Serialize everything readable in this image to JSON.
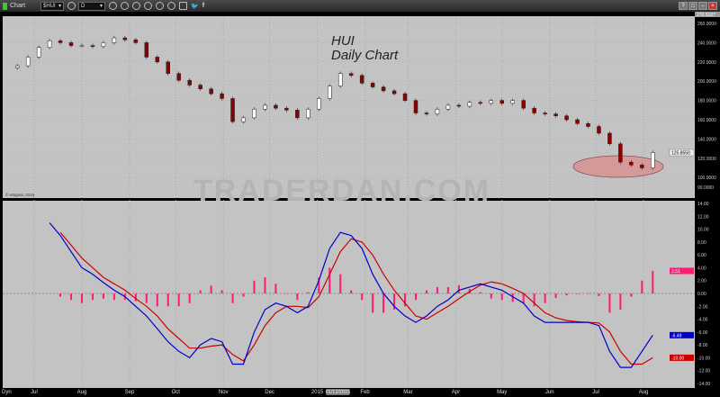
{
  "window": {
    "title": "Chart",
    "symbol": "$HUI",
    "interval": "D",
    "toolbar_icons": [
      "settings-icon",
      "settings-icon",
      "pencil-icon",
      "refresh-icon",
      "target-icon",
      "clock-icon",
      "link-icon",
      "comment-icon",
      "twitter-icon",
      "facebook-icon"
    ],
    "window_buttons": [
      "?",
      "□",
      "–",
      "×"
    ]
  },
  "annotation": {
    "line1": "HUI",
    "line2": "Daily Chart"
  },
  "watermark": "TRADERDAN.COM",
  "copyright": "© eSignal, 2015",
  "bottom_left": "Dyn",
  "colors": {
    "background": "#c3c3c3",
    "axis": "#000000",
    "up_candle": "#ffffff",
    "down_candle": "#8b0000",
    "macd": "#0000cc",
    "signal": "#cc0000",
    "histogram": "#ff1a75",
    "ellipse": "#d49a9a"
  },
  "chart_data": [
    {
      "type": "candlestick",
      "title": "HUI Daily Chart",
      "ylim": [
        90,
        270.5187
      ],
      "y_ticks": [
        "260.0000",
        "240.0000",
        "220.0000",
        "200.0000",
        "180.0000",
        "160.0000",
        "140.0000",
        "120.0000",
        "100.0000",
        "90.0000"
      ],
      "y_top_label": "270.5187",
      "last_price_label": "125.8550",
      "last_price": 125.855,
      "x": [
        "2014-06-20",
        "2014-06-27",
        "2014-07-04",
        "2014-07-11",
        "2014-07-18",
        "2014-07-25",
        "2014-08-01",
        "2014-08-08",
        "2014-08-15",
        "2014-08-22",
        "2014-08-29",
        "2014-09-05",
        "2014-09-12",
        "2014-09-19",
        "2014-09-26",
        "2014-10-03",
        "2014-10-10",
        "2014-10-17",
        "2014-10-24",
        "2014-10-31",
        "2014-11-07",
        "2014-11-14",
        "2014-11-21",
        "2014-11-28",
        "2014-12-05",
        "2014-12-12",
        "2014-12-19",
        "2014-12-26",
        "2015-01-02",
        "2015-01-09",
        "2015-01-16",
        "2015-01-23",
        "2015-01-30",
        "2015-02-06",
        "2015-02-13",
        "2015-02-20",
        "2015-02-27",
        "2015-03-06",
        "2015-03-13",
        "2015-03-20",
        "2015-03-27",
        "2015-04-03",
        "2015-04-10",
        "2015-04-17",
        "2015-04-24",
        "2015-05-01",
        "2015-05-08",
        "2015-05-15",
        "2015-05-22",
        "2015-05-29",
        "2015-06-05",
        "2015-06-12",
        "2015-06-19",
        "2015-06-26",
        "2015-07-03",
        "2015-07-10",
        "2015-07-17",
        "2015-07-24",
        "2015-07-31",
        "2015-08-07"
      ],
      "close": [
        216,
        225,
        235,
        242,
        240,
        237,
        237,
        236,
        240,
        245,
        243,
        240,
        225,
        220,
        208,
        201,
        196,
        192,
        187,
        182,
        158,
        162,
        171,
        175,
        172,
        170,
        162,
        171,
        182,
        195,
        208,
        206,
        198,
        194,
        190,
        187,
        180,
        167,
        166,
        171,
        175,
        174,
        178,
        177,
        180,
        177,
        180,
        172,
        167,
        166,
        164,
        160,
        156,
        153,
        146,
        135,
        116,
        113,
        110,
        125.855
      ],
      "highlight": "ellipse around July–August 2015 lows"
    },
    {
      "type": "line",
      "title": "MACD",
      "ylim": [
        -14,
        14
      ],
      "y_ticks": [
        "14.00",
        "12.00",
        "10.00",
        "8.00",
        "6.00",
        "4.00",
        "2.00",
        "0.00",
        "-2.00",
        "-4.00",
        "-6.00",
        "-8.00",
        "-10.00",
        "-12.00",
        "-14.00"
      ],
      "value_labels": {
        "histogram": "3.51",
        "macd": "-6.49",
        "signal": "-10.00"
      },
      "series": [
        {
          "name": "macd",
          "values": [
            null,
            null,
            null,
            11,
            9,
            6.5,
            4,
            3,
            1.7,
            0.5,
            -0.5,
            -2,
            -3.5,
            -5.5,
            -7.5,
            -9,
            -10,
            -8,
            -7,
            -7.5,
            -11,
            -11,
            -6,
            -2.5,
            -1.5,
            -2,
            -3,
            -2,
            2,
            7,
            9.5,
            9,
            7,
            3,
            0,
            -2,
            -3.5,
            -4.5,
            -3.5,
            -2,
            -1,
            0.5,
            1,
            1.5,
            1,
            0.5,
            -0.5,
            -1.5,
            -3.5,
            -4.5,
            -4.5,
            -4.5,
            -4.5,
            -4.5,
            -5,
            -9,
            -11.5,
            -11.5,
            -9,
            -6.49
          ]
        },
        {
          "name": "signal",
          "values": [
            null,
            null,
            null,
            null,
            9.5,
            7.5,
            5.5,
            4,
            2.5,
            1.5,
            0.5,
            -0.8,
            -2,
            -3.5,
            -5.5,
            -7,
            -8.5,
            -8.5,
            -8.2,
            -8,
            -9.5,
            -10.5,
            -8,
            -5,
            -3,
            -2,
            -2,
            -2.2,
            -0.5,
            3,
            6.5,
            8.5,
            8,
            6,
            3,
            0.5,
            -1.5,
            -3.5,
            -4,
            -3,
            -2,
            -0.8,
            0.3,
            1.3,
            1.8,
            1.5,
            0.8,
            0,
            -1.5,
            -3,
            -3.8,
            -4.2,
            -4.4,
            -4.5,
            -4.6,
            -6,
            -9,
            -11,
            -11,
            -10
          ]
        },
        {
          "name": "histogram",
          "values": [
            null,
            null,
            null,
            null,
            -0.5,
            -1,
            -1.5,
            -1,
            -0.8,
            -1,
            -1,
            -1.2,
            -1.5,
            -2,
            -2,
            -2,
            -1.5,
            0.5,
            1.2,
            0.5,
            -1.5,
            -0.5,
            2,
            2.5,
            1.5,
            0,
            -1,
            0.2,
            2.5,
            4,
            3,
            0.5,
            -1,
            -3,
            -3,
            -2.5,
            -2,
            -1,
            0.5,
            1,
            1,
            1.3,
            0.7,
            0.2,
            -0.8,
            -1,
            -1.3,
            -1.5,
            -2,
            -1.5,
            -0.7,
            -0.3,
            -0.1,
            0,
            -0.4,
            -3,
            -2.5,
            -0.5,
            2,
            3.51
          ]
        }
      ]
    }
  ],
  "x_axis": {
    "labels": [
      {
        "d": "2014-07-01",
        "t": "Jul"
      },
      {
        "d": "2014-08-01",
        "t": "Aug"
      },
      {
        "d": "2014-09-01",
        "t": "Sep"
      },
      {
        "d": "2014-10-01",
        "t": "Oct"
      },
      {
        "d": "2014-11-01",
        "t": "Nov"
      },
      {
        "d": "2014-12-01",
        "t": "Dec"
      },
      {
        "d": "2015-01-01",
        "t": "2015"
      },
      {
        "d": "2015-02-01",
        "t": "Feb"
      },
      {
        "d": "2015-03-01",
        "t": "Mar"
      },
      {
        "d": "2015-04-01",
        "t": "Apr"
      },
      {
        "d": "2015-05-01",
        "t": "May"
      },
      {
        "d": "2015-06-01",
        "t": "Jun"
      },
      {
        "d": "2015-07-01",
        "t": "Jul"
      },
      {
        "d": "2015-08-01",
        "t": "Aug"
      }
    ],
    "cursor_date": "01/12/2015"
  }
}
